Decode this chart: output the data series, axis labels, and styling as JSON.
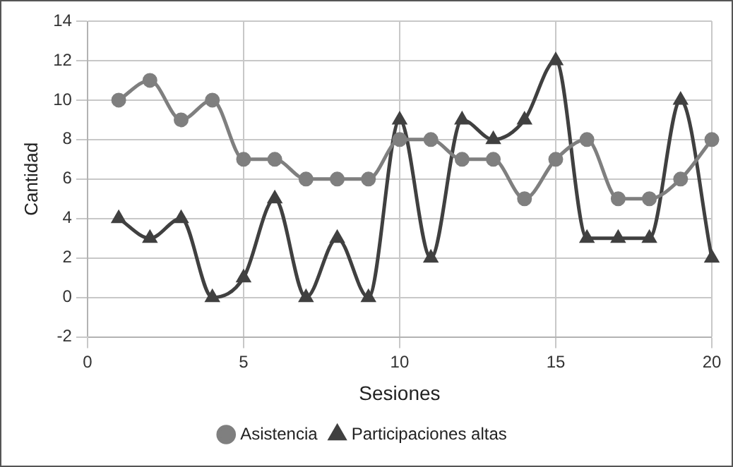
{
  "chart_data": {
    "type": "line",
    "xlabel": "Sesiones",
    "ylabel": "Cantidad",
    "x": [
      1,
      2,
      3,
      4,
      5,
      6,
      7,
      8,
      9,
      10,
      11,
      12,
      13,
      14,
      15,
      16,
      17,
      18,
      19,
      20
    ],
    "series": [
      {
        "name": "Asistencia",
        "color": "#7f7f7f",
        "marker": "circle",
        "values": [
          10,
          11,
          9,
          10,
          7,
          7,
          6,
          6,
          6,
          8,
          8,
          7,
          7,
          5,
          7,
          8,
          5,
          5,
          6,
          8
        ]
      },
      {
        "name": "Participaciones altas",
        "color": "#404040",
        "marker": "triangle",
        "values": [
          4,
          3,
          4,
          0,
          1,
          5,
          0,
          3,
          0,
          9,
          2,
          9,
          8,
          9,
          12,
          3,
          3,
          3,
          10,
          2
        ]
      }
    ],
    "xlim": [
      0,
      20
    ],
    "xticks": [
      0,
      5,
      10,
      15,
      20
    ],
    "ylim": [
      -2,
      14
    ],
    "yticks": [
      -2,
      0,
      2,
      4,
      6,
      8,
      10,
      12,
      14
    ],
    "grid": true,
    "legend": "bottom",
    "line_style": "solid"
  }
}
